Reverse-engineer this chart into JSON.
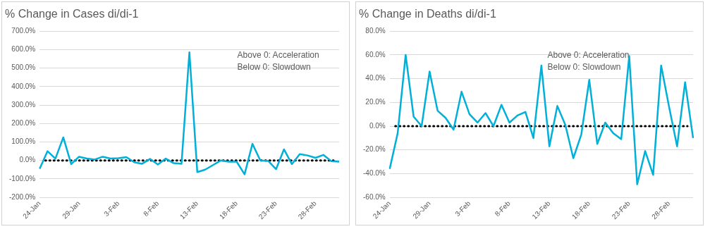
{
  "chart_data": [
    {
      "type": "line",
      "title": "% Change in Cases di/di-1",
      "categories": [
        "24-Jan",
        null,
        null,
        null,
        null,
        "29-Jan",
        null,
        null,
        null,
        null,
        "3-Feb",
        null,
        null,
        null,
        null,
        "8-Feb",
        null,
        null,
        null,
        null,
        "13-Feb",
        null,
        null,
        null,
        null,
        "18-Feb",
        null,
        null,
        null,
        null,
        "23-Feb",
        null,
        null,
        null,
        null,
        "28-Feb",
        null,
        null,
        null
      ],
      "series": [
        {
          "color": "#00b0d8",
          "values": [
            -45,
            50,
            10,
            125,
            -20,
            20,
            10,
            5,
            20,
            10,
            12,
            18,
            -10,
            -18,
            8,
            -22,
            10,
            -15,
            -18,
            585,
            -63,
            -50,
            -25,
            0,
            -7,
            -7,
            -75,
            90,
            0,
            -3,
            -47,
            60,
            -20,
            34,
            27,
            14,
            30,
            -4,
            -7
          ]
        }
      ],
      "ylim": [
        -200,
        700
      ],
      "yticks": [
        {
          "value": -200,
          "label": "-200.0%"
        },
        {
          "value": -100,
          "label": "-100.0%"
        },
        {
          "value": 0,
          "label": "0.0%"
        },
        {
          "value": 100,
          "label": "100.0%"
        },
        {
          "value": 200,
          "label": "200.0%"
        },
        {
          "value": 300,
          "label": "300.0%"
        },
        {
          "value": 400,
          "label": "400.0%"
        },
        {
          "value": 500,
          "label": "500.0%"
        },
        {
          "value": 600,
          "label": "600.0%"
        },
        {
          "value": 700,
          "label": "700.0%"
        }
      ],
      "grid": "y",
      "legend": false,
      "marker": "none",
      "line_style": "solid",
      "ref_lines": [
        {
          "axis": "y",
          "value": 0,
          "color": "#000000",
          "line_style": "dotted"
        }
      ],
      "annotations": [
        "Above 0: Acceleration",
        "Below 0: Slowdown"
      ]
    },
    {
      "type": "line",
      "title": "% Change in Deaths di/di-1",
      "categories": [
        "24-Jan",
        null,
        null,
        null,
        null,
        "29-Jan",
        null,
        null,
        null,
        null,
        "3-Feb",
        null,
        null,
        null,
        null,
        "8-Feb",
        null,
        null,
        null,
        null,
        "13-Feb",
        null,
        null,
        null,
        null,
        "18-Feb",
        null,
        null,
        null,
        null,
        "23-Feb",
        null,
        null,
        null,
        null,
        "28-Feb",
        null,
        null,
        null
      ],
      "series": [
        {
          "color": "#00b0d8",
          "values": [
            -36,
            -6,
            60,
            8,
            0,
            46,
            13,
            7,
            -3,
            29,
            10,
            3,
            11,
            0,
            18,
            3,
            9,
            12,
            -10,
            51,
            -17,
            17,
            1,
            -27,
            -7,
            39,
            -15,
            3,
            -6,
            -11,
            59,
            -49,
            -21,
            -41,
            51,
            16,
            -17,
            37,
            -10
          ]
        }
      ],
      "ylim": [
        -60,
        80
      ],
      "yticks": [
        {
          "value": -60,
          "label": "-60.0%"
        },
        {
          "value": -40,
          "label": "-40.0%"
        },
        {
          "value": -20,
          "label": "-20.0%"
        },
        {
          "value": 0,
          "label": "0.0%"
        },
        {
          "value": 20,
          "label": "20.0%"
        },
        {
          "value": 40,
          "label": "40.0%"
        },
        {
          "value": 60,
          "label": "60.0%"
        },
        {
          "value": 80,
          "label": "80.0%"
        }
      ],
      "grid": "y",
      "legend": false,
      "marker": "none",
      "line_style": "solid",
      "ref_lines": [
        {
          "axis": "y",
          "value": 0,
          "color": "#000000",
          "line_style": "dotted"
        }
      ],
      "annotations": [
        "Above 0: Acceleration",
        "Below 0: Slowdown"
      ]
    }
  ]
}
